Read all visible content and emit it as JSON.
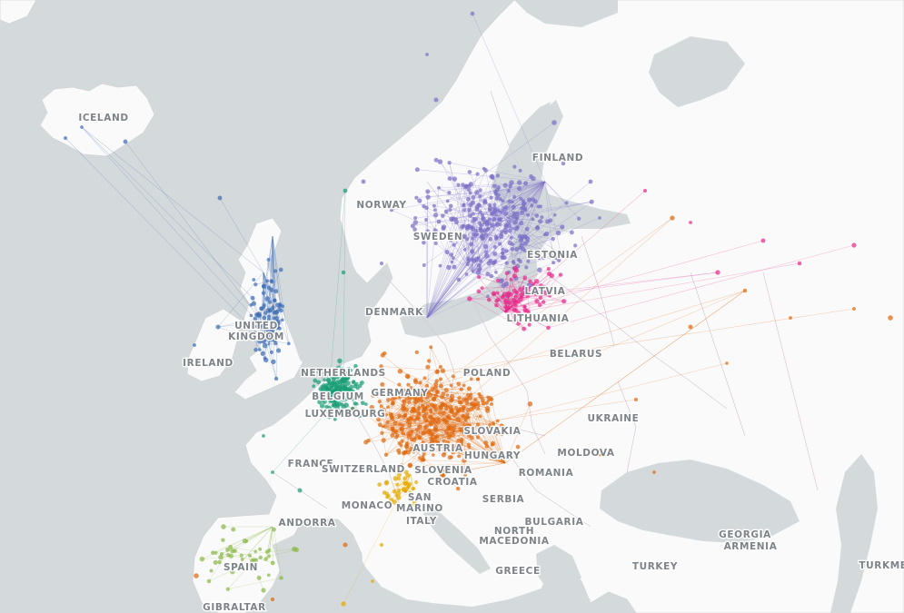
{
  "map": {
    "background_sea": "#d4dadc",
    "land_color": "#fafafa",
    "labels": [
      {
        "id": "iceland",
        "text": "ICELAND"
      },
      {
        "id": "norway",
        "text": "NORWAY"
      },
      {
        "id": "sweden",
        "text": "SWEDEN"
      },
      {
        "id": "finland",
        "text": "FINLAND"
      },
      {
        "id": "estonia",
        "text": "ESTONIA"
      },
      {
        "id": "latvia",
        "text": "LATVIA"
      },
      {
        "id": "lithuania",
        "text": "LITHUANIA"
      },
      {
        "id": "denmark",
        "text": "DENMARK"
      },
      {
        "id": "united-kingdom-1",
        "text": "UNITED"
      },
      {
        "id": "united-kingdom-2",
        "text": "KINGDOM"
      },
      {
        "id": "ireland",
        "text": "IRELAND"
      },
      {
        "id": "netherlands",
        "text": "NETHERLANDS"
      },
      {
        "id": "belgium",
        "text": "BELGIUM"
      },
      {
        "id": "luxembourg",
        "text": "LUXEMBOURG"
      },
      {
        "id": "germany",
        "text": "GERMANY"
      },
      {
        "id": "poland",
        "text": "POLAND"
      },
      {
        "id": "belarus",
        "text": "BELARUS"
      },
      {
        "id": "ukraine",
        "text": "UKRAINE"
      },
      {
        "id": "slovakia",
        "text": "SLOVAKIA"
      },
      {
        "id": "austria",
        "text": "AUSTRIA"
      },
      {
        "id": "hungary",
        "text": "HUNGARY"
      },
      {
        "id": "moldova",
        "text": "MOLDOVA"
      },
      {
        "id": "romania",
        "text": "ROMANIA"
      },
      {
        "id": "slovenia",
        "text": "SLOVENIA"
      },
      {
        "id": "croatia",
        "text": "CROATIA"
      },
      {
        "id": "france",
        "text": "FRANCE"
      },
      {
        "id": "switzerland",
        "text": "SWITZERLAND"
      },
      {
        "id": "san-marino-1",
        "text": "SAN"
      },
      {
        "id": "san-marino-2",
        "text": "MARINO"
      },
      {
        "id": "monaco",
        "text": "MONACO"
      },
      {
        "id": "serbia",
        "text": "SERBIA"
      },
      {
        "id": "bulgaria",
        "text": "BULGARIA"
      },
      {
        "id": "andorra",
        "text": "ANDORRA"
      },
      {
        "id": "italy",
        "text": "ITALY"
      },
      {
        "id": "north-macedonia-1",
        "text": "NORTH"
      },
      {
        "id": "north-macedonia-2",
        "text": "MACEDONIA"
      },
      {
        "id": "georgia",
        "text": "GEORGIA"
      },
      {
        "id": "armenia",
        "text": "ARMENIA"
      },
      {
        "id": "spain",
        "text": "SPAIN"
      },
      {
        "id": "greece",
        "text": "GREECE"
      },
      {
        "id": "turkey",
        "text": "TURKEY"
      },
      {
        "id": "turkmenistan",
        "text": "TURKME"
      },
      {
        "id": "gibraltar",
        "text": "GIBRALTAR"
      }
    ],
    "flow_groups": [
      {
        "id": "nordic",
        "color": "#7b6fc6"
      },
      {
        "id": "uk-ireland",
        "color": "#3f6db5"
      },
      {
        "id": "baltic",
        "color": "#e7298a"
      },
      {
        "id": "central-east",
        "color": "#e06a10"
      },
      {
        "id": "benelux-france",
        "color": "#1b9e77"
      },
      {
        "id": "iberia",
        "color": "#8cb84a"
      },
      {
        "id": "italy-adriatic",
        "color": "#e6ab02"
      }
    ]
  }
}
